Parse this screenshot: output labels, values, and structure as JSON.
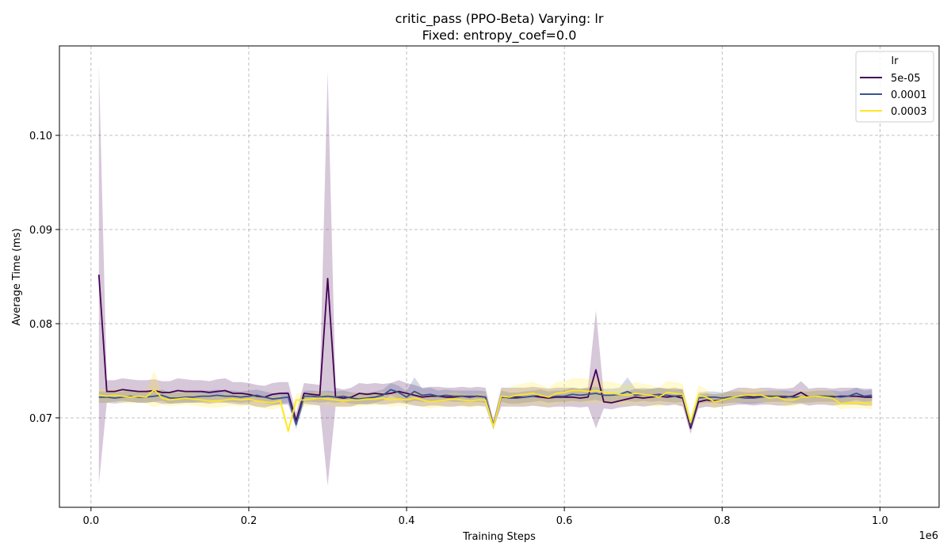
{
  "chart_data": {
    "type": "line",
    "title": "critic_pass (PPO-Beta) Varying: lr",
    "subtitle": "Fixed: entropy_coef=0.0",
    "xlabel": "Training Steps",
    "ylabel": "Average Time (ms)",
    "x_offset_label": "1e6",
    "xlim": [
      -0.04,
      1.075
    ],
    "ylim": [
      0.0605,
      0.1095
    ],
    "x_ticks": [
      0.0,
      0.2,
      0.4,
      0.6,
      0.8,
      1.0
    ],
    "x_tick_labels": [
      "0.0",
      "0.2",
      "0.4",
      "0.6",
      "0.8",
      "1.0"
    ],
    "y_ticks": [
      0.07,
      0.08,
      0.09,
      0.1
    ],
    "y_tick_labels": [
      "0.07",
      "0.08",
      "0.09",
      "0.10"
    ],
    "grid": true,
    "legend": {
      "title": "lr",
      "position": "top-right"
    },
    "x": [
      0.01,
      0.02,
      0.03,
      0.04,
      0.05,
      0.06,
      0.07,
      0.08,
      0.09,
      0.1,
      0.11,
      0.12,
      0.13,
      0.14,
      0.15,
      0.16,
      0.17,
      0.18,
      0.19,
      0.2,
      0.21,
      0.22,
      0.23,
      0.24,
      0.25,
      0.26,
      0.27,
      0.28,
      0.29,
      0.3,
      0.31,
      0.32,
      0.33,
      0.34,
      0.35,
      0.36,
      0.37,
      0.38,
      0.39,
      0.4,
      0.41,
      0.42,
      0.43,
      0.44,
      0.45,
      0.46,
      0.47,
      0.48,
      0.49,
      0.5,
      0.51,
      0.52,
      0.53,
      0.54,
      0.55,
      0.56,
      0.57,
      0.58,
      0.59,
      0.6,
      0.61,
      0.62,
      0.63,
      0.64,
      0.65,
      0.66,
      0.67,
      0.68,
      0.69,
      0.7,
      0.71,
      0.72,
      0.73,
      0.74,
      0.75,
      0.76,
      0.77,
      0.78,
      0.79,
      0.8,
      0.81,
      0.82,
      0.83,
      0.84,
      0.85,
      0.86,
      0.87,
      0.88,
      0.89,
      0.9,
      0.91,
      0.92,
      0.93,
      0.94,
      0.95,
      0.96,
      0.97,
      0.98,
      0.99
    ],
    "series": [
      {
        "name": "5e-05",
        "color": "#440154",
        "values": [
          0.0852,
          0.0728,
          0.0728,
          0.073,
          0.0729,
          0.0728,
          0.0728,
          0.0729,
          0.0727,
          0.0727,
          0.0729,
          0.0728,
          0.0728,
          0.0728,
          0.0727,
          0.0728,
          0.0729,
          0.0726,
          0.0726,
          0.0725,
          0.0723,
          0.0722,
          0.0725,
          0.0726,
          0.0726,
          0.0697,
          0.0726,
          0.0725,
          0.0724,
          0.0848,
          0.0722,
          0.0721,
          0.0722,
          0.0726,
          0.0725,
          0.0726,
          0.0725,
          0.0726,
          0.0728,
          0.0726,
          0.0724,
          0.0722,
          0.0723,
          0.0723,
          0.0722,
          0.0722,
          0.0723,
          0.0722,
          0.0723,
          0.0722,
          0.0692,
          0.0722,
          0.0722,
          0.0722,
          0.0722,
          0.0723,
          0.0722,
          0.0721,
          0.0722,
          0.0722,
          0.0722,
          0.0721,
          0.0722,
          0.0751,
          0.0717,
          0.0716,
          0.0718,
          0.072,
          0.0722,
          0.0721,
          0.0722,
          0.0723,
          0.0722,
          0.0723,
          0.0721,
          0.0689,
          0.0717,
          0.0719,
          0.0718,
          0.0719,
          0.0721,
          0.0723,
          0.0723,
          0.0722,
          0.0723,
          0.0723,
          0.0722,
          0.0722,
          0.0723,
          0.0727,
          0.0722,
          0.0723,
          0.0723,
          0.0722,
          0.0723,
          0.0723,
          0.0723,
          0.0722,
          0.0722
        ],
        "lower": [
          0.063,
          0.0716,
          0.0717,
          0.0718,
          0.0717,
          0.0716,
          0.0716,
          0.0717,
          0.0715,
          0.0715,
          0.0716,
          0.0716,
          0.0716,
          0.0716,
          0.0715,
          0.0716,
          0.0716,
          0.0715,
          0.0714,
          0.0714,
          0.0712,
          0.0711,
          0.0713,
          0.0714,
          0.0714,
          0.069,
          0.0715,
          0.0714,
          0.0713,
          0.0628,
          0.0712,
          0.0712,
          0.0712,
          0.0715,
          0.0714,
          0.0715,
          0.0714,
          0.0715,
          0.0716,
          0.0715,
          0.0713,
          0.0712,
          0.0713,
          0.0713,
          0.0712,
          0.0712,
          0.0713,
          0.0712,
          0.0713,
          0.0712,
          0.0688,
          0.0712,
          0.0712,
          0.0712,
          0.0712,
          0.0713,
          0.0712,
          0.0711,
          0.0712,
          0.0712,
          0.0712,
          0.0711,
          0.0712,
          0.0689,
          0.071,
          0.0709,
          0.0711,
          0.0712,
          0.0713,
          0.0712,
          0.0713,
          0.0714,
          0.0713,
          0.0714,
          0.0712,
          0.0683,
          0.071,
          0.0712,
          0.0711,
          0.0712,
          0.0713,
          0.0714,
          0.0714,
          0.0713,
          0.0714,
          0.0714,
          0.0713,
          0.0713,
          0.0714,
          0.0715,
          0.0713,
          0.0714,
          0.0714,
          0.0713,
          0.0714,
          0.0714,
          0.0714,
          0.0713,
          0.0713
        ],
        "upper": [
          0.1075,
          0.074,
          0.074,
          0.0742,
          0.0741,
          0.074,
          0.074,
          0.0741,
          0.0739,
          0.0739,
          0.0742,
          0.0741,
          0.074,
          0.074,
          0.0739,
          0.0741,
          0.0742,
          0.0738,
          0.0738,
          0.0737,
          0.0735,
          0.0734,
          0.0737,
          0.0738,
          0.0738,
          0.0705,
          0.0737,
          0.0736,
          0.0735,
          0.1068,
          0.0732,
          0.073,
          0.0732,
          0.0737,
          0.0736,
          0.0737,
          0.0736,
          0.0737,
          0.074,
          0.0737,
          0.0735,
          0.0732,
          0.0733,
          0.0733,
          0.0732,
          0.0732,
          0.0733,
          0.0732,
          0.0733,
          0.0732,
          0.0697,
          0.0732,
          0.0732,
          0.0732,
          0.0732,
          0.0733,
          0.0732,
          0.0731,
          0.0732,
          0.0732,
          0.0732,
          0.0731,
          0.0732,
          0.0814,
          0.0725,
          0.0723,
          0.0725,
          0.0728,
          0.0731,
          0.073,
          0.0731,
          0.0732,
          0.0731,
          0.0732,
          0.073,
          0.0695,
          0.0725,
          0.0726,
          0.0725,
          0.0726,
          0.0729,
          0.0732,
          0.0732,
          0.0731,
          0.0732,
          0.0732,
          0.0731,
          0.0731,
          0.0732,
          0.0739,
          0.0731,
          0.0732,
          0.0732,
          0.0731,
          0.0732,
          0.0732,
          0.0732,
          0.0731,
          0.0731
        ]
      },
      {
        "name": "0.0001",
        "color": "#3b528b",
        "values": [
          0.0722,
          0.0722,
          0.0721,
          0.0722,
          0.0723,
          0.0722,
          0.0722,
          0.0723,
          0.0724,
          0.0721,
          0.0721,
          0.0722,
          0.0722,
          0.0723,
          0.0723,
          0.0724,
          0.0723,
          0.0723,
          0.0722,
          0.0723,
          0.0724,
          0.0722,
          0.072,
          0.0721,
          0.0722,
          0.0693,
          0.0723,
          0.0723,
          0.0722,
          0.0723,
          0.0722,
          0.0723,
          0.0721,
          0.072,
          0.0721,
          0.0722,
          0.0724,
          0.073,
          0.0727,
          0.0722,
          0.0728,
          0.0724,
          0.0725,
          0.0723,
          0.0724,
          0.0723,
          0.0723,
          0.0723,
          0.0723,
          0.0722,
          0.0692,
          0.0723,
          0.0721,
          0.0721,
          0.0722,
          0.0723,
          0.0724,
          0.0722,
          0.0723,
          0.0723,
          0.0725,
          0.0724,
          0.0725,
          0.0726,
          0.0724,
          0.0724,
          0.0725,
          0.0728,
          0.0724,
          0.0725,
          0.0724,
          0.0725,
          0.0724,
          0.0723,
          0.0724,
          0.0692,
          0.0721,
          0.0722,
          0.0722,
          0.0721,
          0.0722,
          0.0722,
          0.0721,
          0.0721,
          0.0722,
          0.0723,
          0.0723,
          0.0723,
          0.0722,
          0.0722,
          0.0722,
          0.0723,
          0.0723,
          0.0723,
          0.0722,
          0.0723,
          0.0726,
          0.0723,
          0.0724
        ],
        "lower": [
          0.0716,
          0.0716,
          0.0715,
          0.0716,
          0.0717,
          0.0716,
          0.0716,
          0.0717,
          0.0718,
          0.0715,
          0.0715,
          0.0716,
          0.0716,
          0.0717,
          0.0717,
          0.0718,
          0.0717,
          0.0717,
          0.0716,
          0.0717,
          0.0718,
          0.0716,
          0.0714,
          0.0715,
          0.0716,
          0.0688,
          0.0717,
          0.0717,
          0.0716,
          0.0717,
          0.0716,
          0.0717,
          0.0715,
          0.0714,
          0.0715,
          0.0716,
          0.0718,
          0.0724,
          0.072,
          0.0716,
          0.0718,
          0.0717,
          0.0718,
          0.0717,
          0.0718,
          0.0717,
          0.0717,
          0.0717,
          0.0717,
          0.0716,
          0.0688,
          0.0717,
          0.0715,
          0.0715,
          0.0716,
          0.0717,
          0.0718,
          0.0716,
          0.0717,
          0.0717,
          0.0718,
          0.0717,
          0.0718,
          0.0719,
          0.0717,
          0.0717,
          0.0718,
          0.0718,
          0.0717,
          0.0718,
          0.0717,
          0.0718,
          0.0717,
          0.0716,
          0.0717,
          0.0687,
          0.0715,
          0.0716,
          0.0716,
          0.0715,
          0.0716,
          0.0716,
          0.0715,
          0.0715,
          0.0716,
          0.0717,
          0.0717,
          0.0717,
          0.0716,
          0.0716,
          0.0716,
          0.0717,
          0.0717,
          0.0717,
          0.0716,
          0.0717,
          0.0719,
          0.0717,
          0.0718
        ],
        "upper": [
          0.0728,
          0.0728,
          0.0727,
          0.0728,
          0.0729,
          0.0728,
          0.0728,
          0.0729,
          0.073,
          0.0727,
          0.0727,
          0.0728,
          0.0728,
          0.0729,
          0.0729,
          0.073,
          0.0729,
          0.0729,
          0.0728,
          0.0729,
          0.073,
          0.0728,
          0.0726,
          0.0727,
          0.0728,
          0.0698,
          0.0729,
          0.0729,
          0.0728,
          0.0729,
          0.0728,
          0.0729,
          0.0727,
          0.0726,
          0.0727,
          0.0728,
          0.073,
          0.0737,
          0.0734,
          0.0728,
          0.0743,
          0.0731,
          0.0732,
          0.0729,
          0.073,
          0.0729,
          0.0729,
          0.0729,
          0.0729,
          0.0728,
          0.0697,
          0.0729,
          0.0727,
          0.0727,
          0.0728,
          0.0729,
          0.073,
          0.0728,
          0.0729,
          0.0729,
          0.0732,
          0.0731,
          0.0732,
          0.0733,
          0.0731,
          0.0731,
          0.0732,
          0.0743,
          0.0731,
          0.0732,
          0.0731,
          0.0732,
          0.0731,
          0.073,
          0.0731,
          0.0698,
          0.0727,
          0.0728,
          0.0728,
          0.0727,
          0.0728,
          0.0728,
          0.0727,
          0.0727,
          0.0728,
          0.0729,
          0.0729,
          0.0729,
          0.0728,
          0.0728,
          0.0728,
          0.0729,
          0.0729,
          0.0729,
          0.0728,
          0.0729,
          0.0732,
          0.0729,
          0.073
        ]
      },
      {
        "name": "0.0003",
        "color": "#fde725",
        "values": [
          0.0724,
          0.0723,
          0.0724,
          0.0723,
          0.0722,
          0.0723,
          0.0722,
          0.073,
          0.0721,
          0.0719,
          0.072,
          0.0721,
          0.072,
          0.0719,
          0.0718,
          0.0718,
          0.0719,
          0.072,
          0.0719,
          0.072,
          0.0718,
          0.0717,
          0.0716,
          0.0718,
          0.0686,
          0.0719,
          0.0719,
          0.072,
          0.0721,
          0.072,
          0.0719,
          0.0718,
          0.0719,
          0.0719,
          0.072,
          0.072,
          0.0721,
          0.0719,
          0.072,
          0.0719,
          0.0721,
          0.0719,
          0.0717,
          0.0718,
          0.0719,
          0.072,
          0.0719,
          0.0718,
          0.0719,
          0.0719,
          0.0691,
          0.0723,
          0.0722,
          0.0724,
          0.0725,
          0.0726,
          0.0724,
          0.0722,
          0.0726,
          0.0727,
          0.0729,
          0.0729,
          0.0728,
          0.0729,
          0.0727,
          0.0726,
          0.0725,
          0.0724,
          0.0726,
          0.0725,
          0.0724,
          0.0722,
          0.0727,
          0.0726,
          0.0725,
          0.0695,
          0.0724,
          0.0722,
          0.0717,
          0.0719,
          0.0721,
          0.0723,
          0.0724,
          0.0724,
          0.0724,
          0.0721,
          0.0722,
          0.0719,
          0.0719,
          0.0722,
          0.0722,
          0.0723,
          0.0722,
          0.0721,
          0.0715,
          0.0716,
          0.0716,
          0.0716,
          0.0715
        ],
        "lower": [
          0.0717,
          0.0716,
          0.0717,
          0.0716,
          0.0715,
          0.0716,
          0.0715,
          0.0711,
          0.0714,
          0.0712,
          0.0713,
          0.0714,
          0.0713,
          0.0712,
          0.0711,
          0.0711,
          0.0712,
          0.0713,
          0.0712,
          0.0713,
          0.0711,
          0.071,
          0.0709,
          0.0711,
          0.0682,
          0.0712,
          0.0712,
          0.0713,
          0.0714,
          0.0713,
          0.0712,
          0.0711,
          0.0712,
          0.0712,
          0.0713,
          0.0713,
          0.0714,
          0.0712,
          0.0713,
          0.0712,
          0.0714,
          0.0712,
          0.071,
          0.0711,
          0.0712,
          0.0713,
          0.0712,
          0.0711,
          0.0712,
          0.0712,
          0.0686,
          0.0716,
          0.0712,
          0.0713,
          0.0713,
          0.0714,
          0.0713,
          0.0712,
          0.0714,
          0.0715,
          0.0716,
          0.0716,
          0.0715,
          0.0716,
          0.0715,
          0.0714,
          0.0714,
          0.0713,
          0.0714,
          0.0714,
          0.0713,
          0.0712,
          0.0715,
          0.0714,
          0.0714,
          0.0688,
          0.0713,
          0.0714,
          0.071,
          0.0712,
          0.0714,
          0.0716,
          0.0717,
          0.0717,
          0.0717,
          0.0714,
          0.0715,
          0.0712,
          0.0712,
          0.0715,
          0.0715,
          0.0716,
          0.0715,
          0.0714,
          0.0709,
          0.071,
          0.071,
          0.071,
          0.0709
        ],
        "upper": [
          0.0731,
          0.073,
          0.0731,
          0.073,
          0.0729,
          0.073,
          0.0729,
          0.075,
          0.0728,
          0.0726,
          0.0727,
          0.0728,
          0.0727,
          0.0726,
          0.0725,
          0.0725,
          0.0726,
          0.0727,
          0.0726,
          0.0727,
          0.0725,
          0.0724,
          0.0723,
          0.0725,
          0.069,
          0.0726,
          0.0726,
          0.0727,
          0.0728,
          0.0727,
          0.0726,
          0.0725,
          0.0726,
          0.0726,
          0.0727,
          0.0727,
          0.0728,
          0.0726,
          0.0727,
          0.0726,
          0.0728,
          0.0726,
          0.0724,
          0.0725,
          0.0726,
          0.0727,
          0.0726,
          0.0725,
          0.0726,
          0.0726,
          0.0696,
          0.073,
          0.0732,
          0.0735,
          0.0737,
          0.0738,
          0.0735,
          0.0732,
          0.0738,
          0.0739,
          0.0742,
          0.0742,
          0.0741,
          0.0742,
          0.0739,
          0.0738,
          0.0736,
          0.0735,
          0.0738,
          0.0736,
          0.0735,
          0.0732,
          0.0739,
          0.0738,
          0.0736,
          0.0702,
          0.0735,
          0.073,
          0.0724,
          0.0726,
          0.0728,
          0.073,
          0.0731,
          0.0731,
          0.0731,
          0.0728,
          0.0729,
          0.0726,
          0.0726,
          0.0729,
          0.0729,
          0.073,
          0.0729,
          0.0728,
          0.0721,
          0.0722,
          0.0722,
          0.0722,
          0.0721
        ]
      }
    ]
  }
}
